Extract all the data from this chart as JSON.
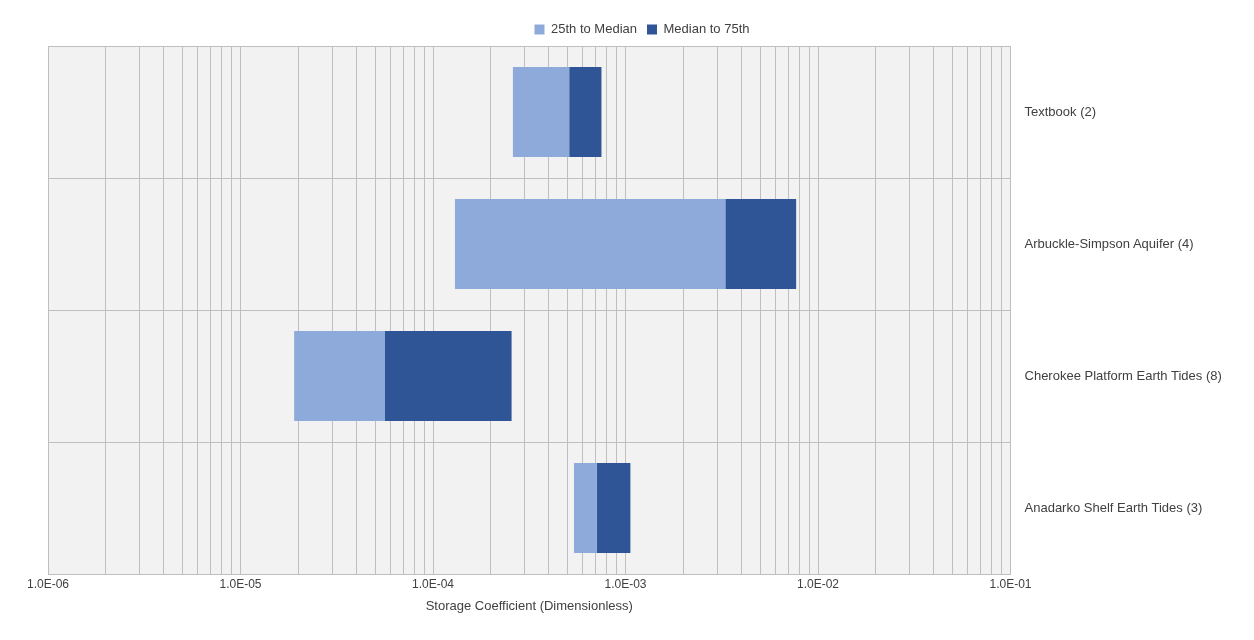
{
  "chart_data": {
    "type": "bar",
    "orientation": "horizontal",
    "xlabel": "Storage Coefficient (Dimensionless)",
    "categories": [
      "Textbook (2)",
      "Arbuckle-Simpson Aquifer (4)",
      "Cherokee Platform Earth Tides (8)",
      "Anadarko Shelf Earth Tides (3)"
    ],
    "series": [
      {
        "name": "25th to Median",
        "color": "#8eaadb",
        "base": [
          0.00026,
          0.00013,
          1.9e-05,
          0.00054
        ],
        "values": [
          0.00025,
          0.00317,
          3.7e-05,
          0.00017
        ]
      },
      {
        "name": "Median to 75th",
        "color": "#2f5597",
        "base": [
          0.00051,
          0.0033,
          5.6e-05,
          0.00071
        ],
        "values": [
          0.00024,
          0.0044,
          0.0002,
          0.00035
        ]
      }
    ],
    "log": "x",
    "xlim": [
      1e-06,
      0.1
    ],
    "xticks": [
      {
        "value": 1e-06,
        "label": "1.0E-06"
      },
      {
        "value": 2e-06,
        "label": null
      },
      {
        "value": 3e-06,
        "label": null
      },
      {
        "value": 4e-06,
        "label": null
      },
      {
        "value": 5e-06,
        "label": null
      },
      {
        "value": 6e-06,
        "label": null
      },
      {
        "value": 7e-06,
        "label": null
      },
      {
        "value": 8e-06,
        "label": null
      },
      {
        "value": 9e-06,
        "label": null
      },
      {
        "value": 1e-05,
        "label": "1.0E-05"
      },
      {
        "value": 2e-05,
        "label": null
      },
      {
        "value": 3e-05,
        "label": null
      },
      {
        "value": 4e-05,
        "label": null
      },
      {
        "value": 5e-05,
        "label": null
      },
      {
        "value": 6e-05,
        "label": null
      },
      {
        "value": 7e-05,
        "label": null
      },
      {
        "value": 8e-05,
        "label": null
      },
      {
        "value": 9e-05,
        "label": null
      },
      {
        "value": 0.0001,
        "label": "1.0E-04"
      },
      {
        "value": 0.0002,
        "label": null
      },
      {
        "value": 0.0003,
        "label": null
      },
      {
        "value": 0.0004,
        "label": null
      },
      {
        "value": 0.0005,
        "label": null
      },
      {
        "value": 0.0006,
        "label": null
      },
      {
        "value": 0.0007,
        "label": null
      },
      {
        "value": 0.0008,
        "label": null
      },
      {
        "value": 0.0009,
        "label": null
      },
      {
        "value": 0.001,
        "label": "1.0E-03"
      },
      {
        "value": 0.002,
        "label": null
      },
      {
        "value": 0.003,
        "label": null
      },
      {
        "value": 0.004,
        "label": null
      },
      {
        "value": 0.005,
        "label": null
      },
      {
        "value": 0.006,
        "label": null
      },
      {
        "value": 0.007,
        "label": null
      },
      {
        "value": 0.008,
        "label": null
      },
      {
        "value": 0.009,
        "label": null
      },
      {
        "value": 0.01,
        "label": "1.0E-02"
      },
      {
        "value": 0.02,
        "label": null
      },
      {
        "value": 0.03,
        "label": null
      },
      {
        "value": 0.04,
        "label": null
      },
      {
        "value": 0.05,
        "label": null
      },
      {
        "value": 0.06,
        "label": null
      },
      {
        "value": 0.07,
        "label": null
      },
      {
        "value": 0.08,
        "label": null
      },
      {
        "value": 0.09,
        "label": null
      },
      {
        "value": 0.1,
        "label": "1.0E-01"
      }
    ],
    "grid": true,
    "legend": "top"
  }
}
